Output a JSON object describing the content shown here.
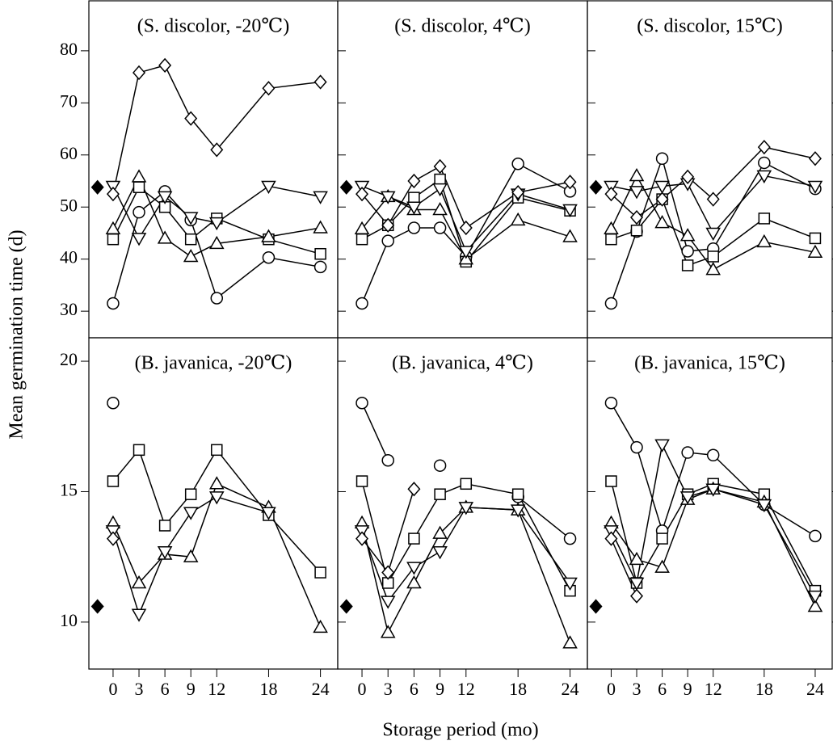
{
  "ylabel": "Mean germination time (d)",
  "xlabel": "Storage period (mo)",
  "chart_data": [
    {
      "type": "line",
      "label": "(S. discolor, -20℃)",
      "x": [
        0,
        3,
        6,
        9,
        12,
        18,
        24
      ],
      "xlim": [
        -2.8,
        26
      ],
      "xticks": [
        0,
        3,
        6,
        9,
        12,
        18,
        24
      ],
      "ylim": [
        24.9,
        89.6
      ],
      "yticks": [
        30,
        40,
        50,
        60,
        70,
        80
      ],
      "control": {
        "x": -1.8,
        "value": 53.8
      },
      "series": [
        {
          "marker": "circle",
          "values": [
            31.5,
            49,
            53,
            47.5,
            32.5,
            40.3,
            38.5
          ]
        },
        {
          "marker": "square",
          "values": [
            43.8,
            53.8,
            50,
            43.8,
            47.8,
            43.8,
            41
          ]
        },
        {
          "marker": "triangle-up",
          "values": [
            45.8,
            55.8,
            44,
            40.5,
            43,
            44.3,
            46
          ]
        },
        {
          "marker": "triangle-down",
          "values": [
            54,
            44,
            52,
            48,
            47,
            54,
            52
          ]
        },
        {
          "marker": "diamond",
          "values": [
            52.5,
            75.8,
            77.2,
            67,
            61,
            72.8,
            74
          ]
        }
      ]
    },
    {
      "type": "line",
      "label": "(S. discolor, 4℃)",
      "x": [
        0,
        3,
        6,
        9,
        12,
        18,
        24
      ],
      "xlim": [
        -2.8,
        26
      ],
      "xticks": [
        0,
        3,
        6,
        9,
        12,
        18,
        24
      ],
      "ylim": [
        24.9,
        89.6
      ],
      "yticks": [
        30,
        40,
        50,
        60,
        70,
        80
      ],
      "control": {
        "x": -1.8,
        "value": 53.8
      },
      "series": [
        {
          "marker": "circle",
          "values": [
            31.5,
            43.5,
            46,
            46,
            40.5,
            58.3,
            53
          ]
        },
        {
          "marker": "square",
          "values": [
            43.8,
            46.5,
            51.8,
            55.3,
            39.5,
            51.8,
            49.3
          ]
        },
        {
          "marker": "triangle-up",
          "values": [
            45.8,
            52,
            49.5,
            49.5,
            40,
            47.5,
            44.3
          ]
        },
        {
          "marker": "triangle-down",
          "values": [
            54,
            52,
            50,
            53.5,
            41.5,
            52.5,
            49.5
          ]
        },
        {
          "marker": "diamond",
          "values": [
            52.5,
            46.5,
            55,
            57.8,
            46,
            52.8,
            54.8
          ]
        }
      ]
    },
    {
      "type": "line",
      "label": "(S. discolor, 15℃)",
      "x": [
        0,
        3,
        6,
        9,
        12,
        18,
        24
      ],
      "xlim": [
        -2.8,
        26
      ],
      "xticks": [
        0,
        3,
        6,
        9,
        12,
        18,
        24
      ],
      "ylim": [
        24.9,
        89.6
      ],
      "yticks": [
        30,
        40,
        50,
        60,
        70,
        80
      ],
      "control": {
        "x": -1.8,
        "value": 53.8
      },
      "series": [
        {
          "marker": "circle",
          "values": [
            31.5,
            45.3,
            59.3,
            41.5,
            42,
            58.5,
            53.5
          ]
        },
        {
          "marker": "square",
          "values": [
            43.8,
            45.5,
            51.5,
            38.8,
            40.5,
            47.8,
            44
          ]
        },
        {
          "marker": "triangle-up",
          "values": [
            45.8,
            56,
            47,
            44.5,
            38,
            43.3,
            41.3
          ]
        },
        {
          "marker": "triangle-down",
          "values": [
            54,
            53,
            54,
            54.5,
            45,
            56,
            54
          ]
        },
        {
          "marker": "diamond",
          "values": [
            52.5,
            48,
            51.5,
            55.8,
            51.5,
            61.5,
            59.3
          ]
        }
      ]
    },
    {
      "type": "line",
      "label": "(B. javanica, -20℃)",
      "x": [
        0,
        3,
        6,
        9,
        12,
        18,
        24
      ],
      "xlim": [
        -2.8,
        26
      ],
      "xticks": [
        0,
        3,
        6,
        9,
        12,
        18,
        24
      ],
      "ylim": [
        8.2,
        20.9
      ],
      "yticks": [
        10,
        15,
        20
      ],
      "control": {
        "x": -1.8,
        "value": 10.6
      },
      "series": [
        {
          "marker": "circle",
          "values": [
            18.4,
            null,
            null,
            null,
            null,
            null,
            null
          ]
        },
        {
          "marker": "square",
          "values": [
            15.4,
            16.6,
            13.7,
            14.9,
            16.6,
            14.1,
            11.9
          ]
        },
        {
          "marker": "triangle-up",
          "values": [
            13.8,
            11.5,
            12.6,
            12.5,
            15.3,
            14.4,
            9.8
          ]
        },
        {
          "marker": "triangle-down",
          "values": [
            13.5,
            10.3,
            12.7,
            14.2,
            14.8,
            14.2,
            null
          ]
        },
        {
          "marker": "diamond",
          "values": [
            13.2,
            null,
            null,
            null,
            null,
            null,
            null
          ]
        }
      ]
    },
    {
      "type": "line",
      "label": "(B. javanica, 4℃)",
      "x": [
        0,
        3,
        6,
        9,
        12,
        18,
        24
      ],
      "xlim": [
        -2.8,
        26
      ],
      "xticks": [
        0,
        3,
        6,
        9,
        12,
        18,
        24
      ],
      "ylim": [
        8.2,
        20.9
      ],
      "yticks": [
        10,
        15,
        20
      ],
      "control": {
        "x": -1.8,
        "value": 10.6
      },
      "series": [
        {
          "marker": "circle",
          "values": [
            18.4,
            16.2,
            null,
            16,
            null,
            14.8,
            13.2
          ]
        },
        {
          "marker": "square",
          "values": [
            15.4,
            11.5,
            13.2,
            14.9,
            15.3,
            14.9,
            11.2
          ]
        },
        {
          "marker": "triangle-up",
          "values": [
            13.8,
            9.6,
            11.5,
            13.4,
            14.4,
            14.3,
            9.2
          ]
        },
        {
          "marker": "triangle-down",
          "values": [
            13.5,
            10.8,
            12.1,
            12.7,
            14.4,
            14.3,
            11.5
          ]
        },
        {
          "marker": "diamond",
          "values": [
            13.2,
            11.9,
            15.1,
            null,
            null,
            null,
            null
          ]
        }
      ]
    },
    {
      "type": "line",
      "label": "(B. javanica, 15℃)",
      "x": [
        0,
        3,
        6,
        9,
        12,
        18,
        24
      ],
      "xlim": [
        -2.8,
        26
      ],
      "xticks": [
        0,
        3,
        6,
        9,
        12,
        18,
        24
      ],
      "ylim": [
        8.2,
        20.9
      ],
      "yticks": [
        10,
        15,
        20
      ],
      "control": {
        "x": -1.8,
        "value": 10.6
      },
      "series": [
        {
          "marker": "circle",
          "values": [
            18.4,
            16.7,
            13.5,
            16.5,
            16.4,
            14.5,
            13.3
          ]
        },
        {
          "marker": "square",
          "values": [
            15.4,
            11.5,
            13.2,
            14.9,
            15.3,
            14.9,
            11.2
          ]
        },
        {
          "marker": "triangle-up",
          "values": [
            13.8,
            12.4,
            12.1,
            14.7,
            15.1,
            14.6,
            10.6
          ]
        },
        {
          "marker": "triangle-down",
          "values": [
            13.5,
            11.5,
            16.8,
            14.8,
            15.1,
            14.5,
            11
          ]
        },
        {
          "marker": "diamond",
          "values": [
            13.2,
            11,
            null,
            null,
            null,
            null,
            null
          ]
        }
      ]
    }
  ]
}
